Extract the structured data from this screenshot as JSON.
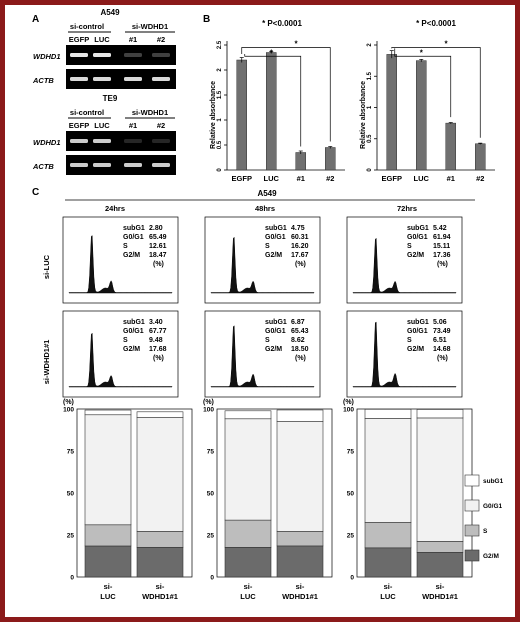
{
  "panel_a": {
    "label": "A",
    "gels": [
      {
        "cell_line": "A549",
        "group_control": "si-control",
        "group_kd": "si-WDHD1",
        "lanes": [
          "EGFP",
          "LUC",
          "#1",
          "#2"
        ],
        "rows": [
          "WDHD1",
          "ACTB"
        ],
        "band_intensity": [
          [
            0.9,
            0.9,
            0.25,
            0.25
          ],
          [
            0.85,
            0.85,
            0.85,
            0.85
          ]
        ]
      },
      {
        "cell_line": "TE9",
        "group_control": "si-control",
        "group_kd": "si-WDHD1",
        "lanes": [
          "EGFP",
          "LUC",
          "#1",
          "#2"
        ],
        "rows": [
          "WDHD1",
          "ACTB"
        ],
        "band_intensity": [
          [
            0.8,
            0.8,
            0.15,
            0.15
          ],
          [
            0.8,
            0.8,
            0.8,
            0.8
          ]
        ]
      }
    ]
  },
  "panel_b": {
    "label": "B",
    "charts": [
      {
        "type": "bar",
        "significance": "* P<0.0001",
        "ylabel": "Relative absorbance",
        "categories": [
          "EGFP",
          "LUC",
          "#1",
          "#2"
        ],
        "values": [
          2.2,
          2.35,
          0.35,
          0.45
        ],
        "errors": [
          0.05,
          0.02,
          0.03,
          0.02
        ],
        "ylim": [
          0,
          2.5
        ],
        "yticks": [
          "0",
          "0.5",
          "1",
          "1.5",
          "2",
          "2.5"
        ],
        "bracket_marks": [
          "*",
          "*"
        ]
      },
      {
        "type": "bar",
        "significance": "* P<0.0001",
        "ylabel": "Relative absorbance",
        "categories": [
          "EGFP",
          "LUC",
          "#1",
          "#2"
        ],
        "values": [
          1.85,
          1.75,
          0.75,
          0.42
        ],
        "errors": [
          0.06,
          0.02,
          0.01,
          0.01
        ],
        "ylim": [
          0,
          2
        ],
        "yticks": [
          "0",
          "0.5",
          "1",
          "1.5",
          "2"
        ],
        "bracket_marks": [
          "*",
          "*"
        ]
      }
    ]
  },
  "panel_c": {
    "label": "C",
    "cell_line": "A549",
    "timepoints": [
      "24hrs",
      "48hrs",
      "72hrs"
    ],
    "row_labels": [
      "si-LUC",
      "si-WDHD1#1"
    ],
    "phase_names": [
      "subG1",
      "G0/G1",
      "S",
      "G2/M"
    ],
    "unit": "(%)",
    "histograms": [
      [
        {
          "values": [
            "2.80",
            "65.49",
            "12.61",
            "18.47"
          ]
        },
        {
          "values": [
            "4.75",
            "60.31",
            "16.20",
            "17.67"
          ]
        },
        {
          "values": [
            "5.42",
            "61.94",
            "15.11",
            "17.36"
          ]
        }
      ],
      [
        {
          "values": [
            "3.40",
            "67.77",
            "9.48",
            "17.68"
          ]
        },
        {
          "values": [
            "6.87",
            "65.43",
            "8.62",
            "18.50"
          ]
        },
        {
          "values": [
            "5.06",
            "73.49",
            "6.51",
            "14.68"
          ]
        }
      ]
    ],
    "stacked_chart": {
      "type": "bar",
      "stacked": true,
      "ylabel": "(%)",
      "yticks": [
        "0",
        "25",
        "50",
        "75",
        "100"
      ],
      "ylim": [
        0,
        100
      ],
      "groups": [
        {
          "timepoint": "24hrs",
          "categories": [
            "si-LUC",
            "si-WDHD1#1"
          ],
          "series": [
            {
              "name": "G2/M",
              "values": [
                18.47,
                17.68
              ]
            },
            {
              "name": "S",
              "values": [
                12.61,
                9.48
              ]
            },
            {
              "name": "G0/G1",
              "values": [
                65.49,
                67.77
              ]
            },
            {
              "name": "subG1",
              "values": [
                2.8,
                3.4
              ]
            }
          ]
        },
        {
          "timepoint": "48hrs",
          "categories": [
            "si-LUC",
            "si-WDHD1#1"
          ],
          "series": [
            {
              "name": "G2/M",
              "values": [
                17.67,
                18.5
              ]
            },
            {
              "name": "S",
              "values": [
                16.2,
                8.62
              ]
            },
            {
              "name": "G0/G1",
              "values": [
                60.31,
                65.43
              ]
            },
            {
              "name": "subG1",
              "values": [
                4.75,
                6.87
              ]
            }
          ]
        },
        {
          "timepoint": "72hrs",
          "categories": [
            "si-LUC",
            "si-WDHD1#1"
          ],
          "series": [
            {
              "name": "G2/M",
              "values": [
                17.36,
                14.68
              ]
            },
            {
              "name": "S",
              "values": [
                15.11,
                6.51
              ]
            },
            {
              "name": "G0/G1",
              "values": [
                61.94,
                73.49
              ]
            },
            {
              "name": "subG1",
              "values": [
                5.42,
                5.06
              ]
            }
          ]
        }
      ],
      "bar_labels": [
        [
          "si-",
          "LUC"
        ],
        [
          "si-",
          "WDHD1#1"
        ]
      ],
      "legend": [
        "subG1",
        "G0/G1",
        "S",
        "G2/M"
      ],
      "colors": {
        "subG1": "#ffffff",
        "G0/G1": "#f2f2f2",
        "S": "#bdbdbd",
        "G2/M": "#6b6b6b"
      }
    }
  }
}
